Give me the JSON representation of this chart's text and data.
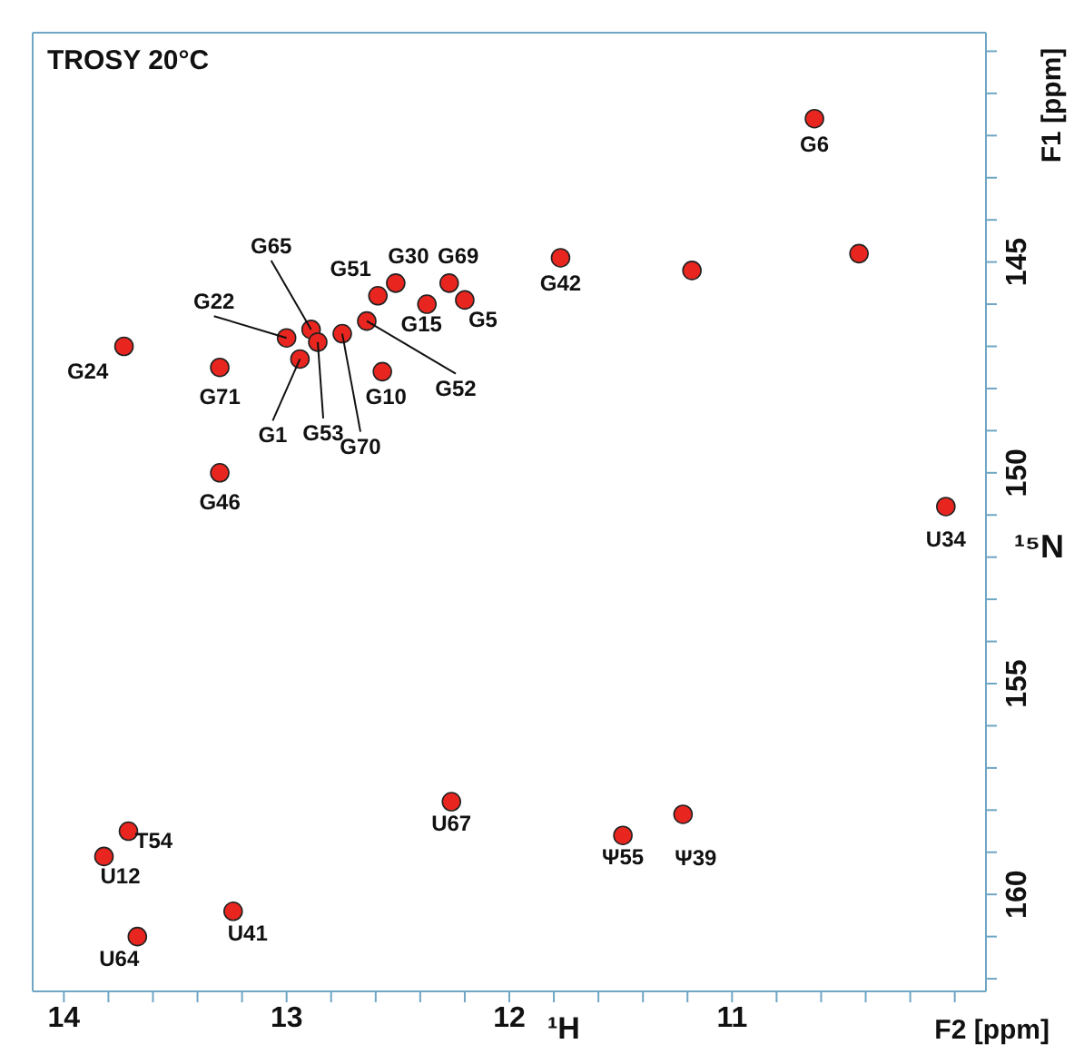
{
  "chart_data": {
    "type": "scatter",
    "title": "TROSY 20°C",
    "xlabel": "F2 [ppm]",
    "ylabel": "F1 [ppm]",
    "marker": "circle",
    "xlim": [
      14.14,
      9.86
    ],
    "ylim": [
      162.3,
      139.56
    ],
    "xticks": [
      14,
      {
        "value": 13.8,
        "label": null
      },
      {
        "value": 13.6,
        "label": null
      },
      {
        "value": 13.4,
        "label": null
      },
      {
        "value": 13.2,
        "label": null
      },
      13,
      {
        "value": 12.8,
        "label": null
      },
      {
        "value": 12.6,
        "label": null
      },
      {
        "value": 12.4,
        "label": null
      },
      {
        "value": 12.2,
        "label": null
      },
      12,
      {
        "value": 11.8,
        "label": null
      },
      {
        "value": 11.6,
        "label": null
      },
      {
        "value": 11.4,
        "label": null
      },
      {
        "value": 11.2,
        "label": null
      },
      11,
      {
        "value": 10.8,
        "label": null
      },
      {
        "value": 10.6,
        "label": null
      },
      {
        "value": 10.4,
        "label": null
      },
      {
        "value": 10.2,
        "label": null
      },
      {
        "value": 10,
        "label": null
      }
    ],
    "yticks": [
      {
        "value": 140,
        "label": null
      },
      {
        "value": 141,
        "label": null
      },
      {
        "value": 142,
        "label": null
      },
      {
        "value": 143,
        "label": null
      },
      {
        "value": 144,
        "label": null
      },
      145,
      {
        "value": 146,
        "label": null
      },
      {
        "value": 147,
        "label": null
      },
      {
        "value": 148,
        "label": null
      },
      {
        "value": 149,
        "label": null
      },
      150,
      {
        "value": 151,
        "label": null
      },
      {
        "value": 152,
        "label": null
      },
      {
        "value": 153,
        "label": null
      },
      {
        "value": 154,
        "label": null
      },
      155,
      {
        "value": 156,
        "label": null
      },
      {
        "value": 157,
        "label": null
      },
      {
        "value": 158,
        "label": null
      },
      {
        "value": 159,
        "label": null
      },
      160,
      {
        "value": 161,
        "label": null
      },
      {
        "value": 162,
        "label": null
      }
    ],
    "series": [
      {
        "color": "#e8261f",
        "x": [
          10.63,
          11.77,
          10.04,
          13.73,
          13.3,
          13.3,
          12.89,
          13.0,
          12.94,
          12.86,
          12.75,
          12.64,
          12.59,
          12.51,
          12.27,
          12.37,
          12.2,
          12.57,
          12.26,
          13.71,
          13.82,
          13.67,
          13.24,
          11.49,
          11.22,
          11.18,
          10.43
        ],
        "values": [
          141.6,
          144.9,
          150.8,
          147.0,
          147.5,
          150.0,
          146.6,
          146.8,
          147.3,
          146.9,
          146.7,
          146.4,
          145.8,
          145.5,
          145.5,
          146.0,
          145.9,
          147.6,
          157.8,
          158.5,
          159.1,
          161.0,
          160.4,
          158.6,
          158.1,
          145.2,
          144.8
        ]
      }
    ],
    "annotations": [
      {
        "text": "G6",
        "x": 10.63,
        "y": 141.6
      },
      {
        "text": "G42",
        "x": 11.77,
        "y": 144.9
      },
      {
        "text": "U34",
        "x": 10.04,
        "y": 150.8
      },
      {
        "text": "G24",
        "x": 13.73,
        "y": 147.0
      },
      {
        "text": "G71",
        "x": 13.3,
        "y": 147.5
      },
      {
        "text": "G46",
        "x": 13.3,
        "y": 150.0
      },
      {
        "text": "G65",
        "x": 12.89,
        "y": 146.6
      },
      {
        "text": "G22",
        "x": 13.0,
        "y": 146.8
      },
      {
        "text": "G1",
        "x": 12.94,
        "y": 147.3
      },
      {
        "text": "G53",
        "x": 12.86,
        "y": 146.9
      },
      {
        "text": "G70",
        "x": 12.75,
        "y": 146.7
      },
      {
        "text": "G52",
        "x": 12.64,
        "y": 146.4
      },
      {
        "text": "G51",
        "x": 12.59,
        "y": 145.8
      },
      {
        "text": "G30",
        "x": 12.51,
        "y": 145.5
      },
      {
        "text": "G69",
        "x": 12.27,
        "y": 145.5
      },
      {
        "text": "G15",
        "x": 12.37,
        "y": 146.0
      },
      {
        "text": "G5",
        "x": 12.2,
        "y": 145.9
      },
      {
        "text": "G10",
        "x": 12.57,
        "y": 147.6
      },
      {
        "text": "U67",
        "x": 12.26,
        "y": 157.8
      },
      {
        "text": "T54",
        "x": 13.71,
        "y": 158.5
      },
      {
        "text": "U12",
        "x": 13.82,
        "y": 159.1
      },
      {
        "text": "U64",
        "x": 13.67,
        "y": 161.0
      },
      {
        "text": "U41",
        "x": 13.24,
        "y": 160.4
      },
      {
        "text": "Ψ55",
        "x": 11.49,
        "y": 158.6
      },
      {
        "text": "Ψ39",
        "x": 11.22,
        "y": 158.1
      },
      "¹H",
      "¹⁵N"
    ]
  }
}
